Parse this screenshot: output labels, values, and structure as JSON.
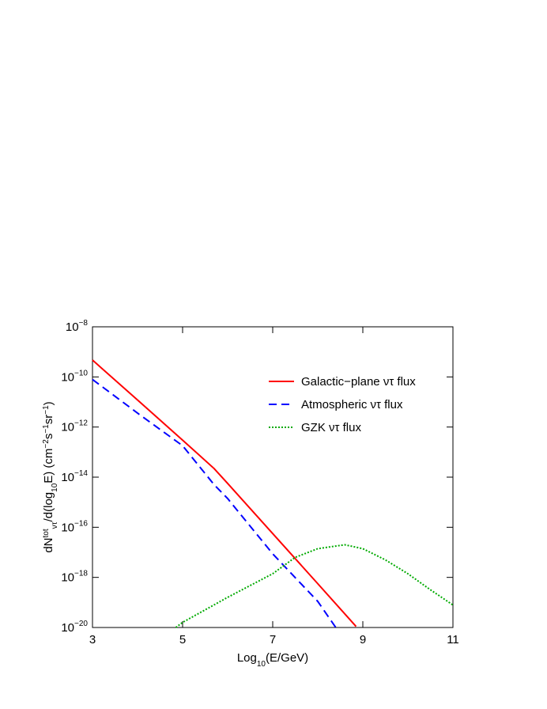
{
  "chart_data": {
    "type": "line",
    "log_y": true,
    "xlabel": [
      {
        "t": "Log"
      },
      {
        "t": "10",
        "pos": "sub"
      },
      {
        "t": "(E/GeV)"
      }
    ],
    "ylabel": [
      {
        "t": "dN"
      },
      {
        "t": "tot",
        "pos": "sup"
      },
      {
        "t": "ντ",
        "pos": "sub"
      },
      {
        "t": "/d(log"
      },
      {
        "t": "10",
        "pos": "sub"
      },
      {
        "t": "E)  (cm"
      },
      {
        "t": "−2",
        "pos": "sup"
      },
      {
        "t": "s"
      },
      {
        "t": "−1",
        "pos": "sup"
      },
      {
        "t": "sr"
      },
      {
        "t": "−1",
        "pos": "sup"
      },
      {
        "t": ")"
      }
    ],
    "xlim": [
      3,
      11
    ],
    "xticks": [
      3,
      5,
      7,
      9,
      11
    ],
    "ylim": [
      1e-20,
      1e-08
    ],
    "yticks": [
      {
        "value": 1e-08,
        "label": "10−8"
      },
      {
        "value": 1e-10,
        "label": "10−10"
      },
      {
        "value": 1e-12,
        "label": "10−12"
      },
      {
        "value": 1e-14,
        "label": "10−14"
      },
      {
        "value": 1e-16,
        "label": "10−16"
      },
      {
        "value": 1e-18,
        "label": "10−18"
      },
      {
        "value": 1e-20,
        "label": "10−20"
      }
    ],
    "series": [
      {
        "name": "Galactic−plane ντ flux",
        "color": "#ff0000",
        "dash": "solid",
        "x": [
          3,
          4,
          5,
          5.7,
          6,
          7,
          8,
          8.85
        ],
        "values": [
          4.7e-10,
          1.2e-11,
          3e-13,
          2.2e-14,
          5.6e-15,
          5.6e-17,
          5.6e-19,
          1.1e-20
        ]
      },
      {
        "name": "Atmospheric ντ flux",
        "color": "#0000ff",
        "dash": "dashed",
        "x": [
          3,
          4,
          5,
          5.7,
          6,
          7,
          8,
          8.4
        ],
        "values": [
          7.9e-11,
          3.6e-12,
          1.8e-13,
          5e-15,
          1.4e-15,
          8.7e-18,
          1.1e-19,
          1e-20
        ]
      },
      {
        "name": "GZK ντ flux",
        "color": "#00aa00",
        "dash": "dotted",
        "x": [
          4.85,
          5,
          6,
          7,
          7.5,
          8,
          8.6,
          9,
          9.5,
          10,
          10.5,
          11
        ],
        "values": [
          1e-20,
          1.6e-20,
          1.6e-19,
          1.4e-18,
          6.3e-18,
          1.4e-17,
          2e-17,
          1.4e-17,
          5e-18,
          1.4e-18,
          3.2e-19,
          7.9e-20
        ]
      }
    ]
  }
}
